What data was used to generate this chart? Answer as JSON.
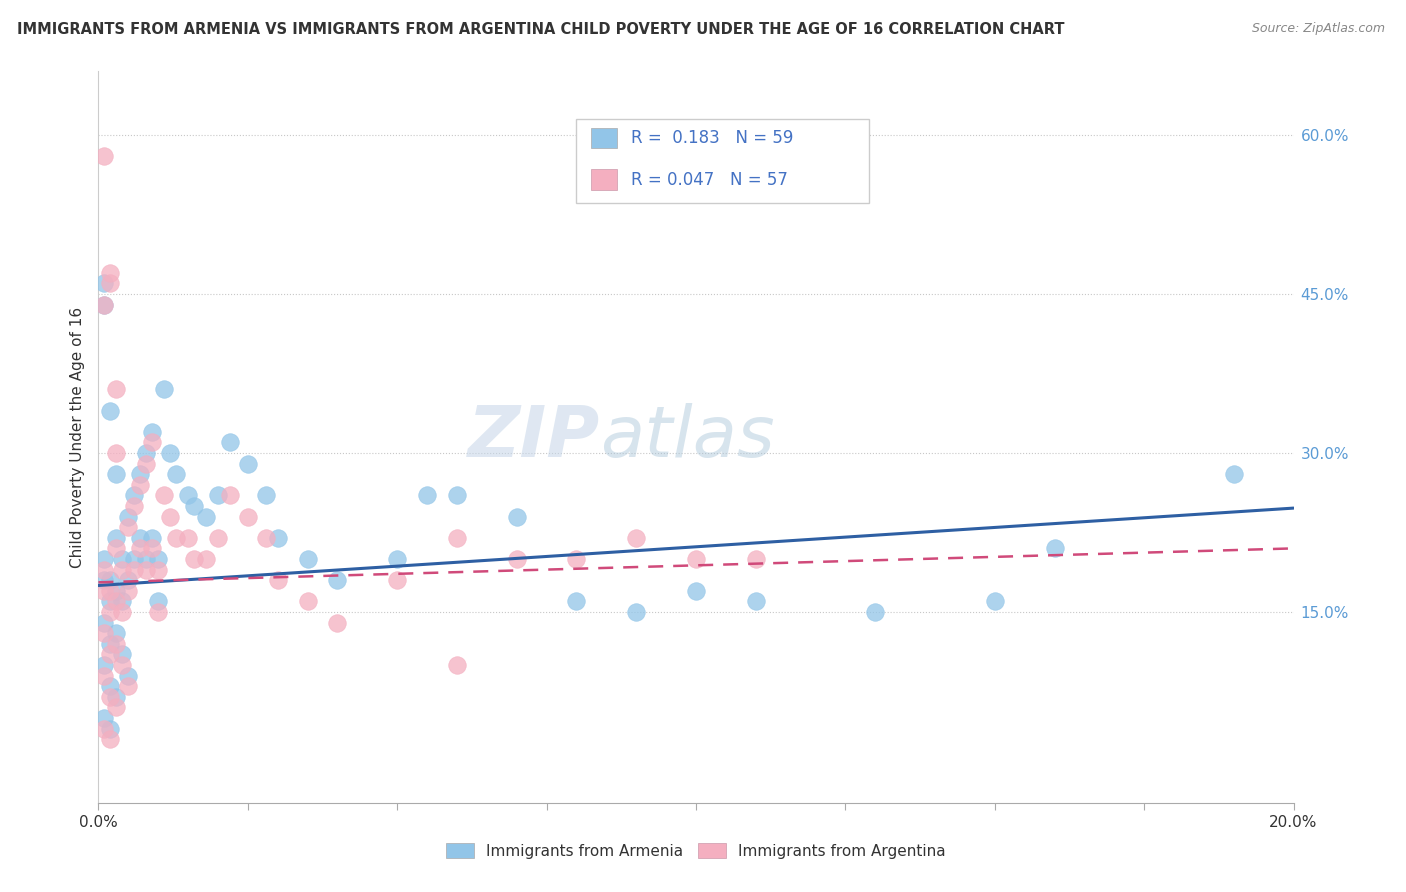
{
  "title": "IMMIGRANTS FROM ARMENIA VS IMMIGRANTS FROM ARGENTINA CHILD POVERTY UNDER THE AGE OF 16 CORRELATION CHART",
  "source": "Source: ZipAtlas.com",
  "ylabel": "Child Poverty Under the Age of 16",
  "y_ticks": [
    0.0,
    0.15,
    0.3,
    0.45,
    0.6
  ],
  "y_tick_labels": [
    "",
    "15.0%",
    "30.0%",
    "45.0%",
    "60.0%"
  ],
  "x_min": 0.0,
  "x_max": 0.2,
  "y_min": -0.03,
  "y_max": 0.66,
  "armenia_color": "#92c5e8",
  "argentina_color": "#f4afc0",
  "armenia_line_color": "#2e5fa3",
  "argentina_line_color": "#d04a7a",
  "armenia_R": 0.183,
  "armenia_N": 59,
  "argentina_R": 0.047,
  "argentina_N": 57,
  "watermark_zip": "ZIP",
  "watermark_atlas": "atlas",
  "legend_label_armenia": "Immigrants from Armenia",
  "legend_label_argentina": "Immigrants from Argentina",
  "armenia_x": [
    0.001,
    0.001,
    0.001,
    0.001,
    0.001,
    0.002,
    0.002,
    0.002,
    0.002,
    0.002,
    0.003,
    0.003,
    0.003,
    0.003,
    0.004,
    0.004,
    0.004,
    0.005,
    0.005,
    0.005,
    0.006,
    0.006,
    0.007,
    0.007,
    0.008,
    0.008,
    0.009,
    0.009,
    0.01,
    0.01,
    0.011,
    0.012,
    0.013,
    0.015,
    0.016,
    0.018,
    0.02,
    0.022,
    0.025,
    0.028,
    0.03,
    0.035,
    0.04,
    0.05,
    0.055,
    0.06,
    0.07,
    0.08,
    0.09,
    0.1,
    0.11,
    0.13,
    0.15,
    0.16,
    0.001,
    0.001,
    0.002,
    0.003,
    0.19
  ],
  "armenia_y": [
    0.18,
    0.2,
    0.14,
    0.1,
    0.05,
    0.18,
    0.16,
    0.12,
    0.08,
    0.04,
    0.22,
    0.17,
    0.13,
    0.07,
    0.2,
    0.16,
    0.11,
    0.24,
    0.18,
    0.09,
    0.26,
    0.2,
    0.28,
    0.22,
    0.3,
    0.2,
    0.32,
    0.22,
    0.2,
    0.16,
    0.36,
    0.3,
    0.28,
    0.26,
    0.25,
    0.24,
    0.26,
    0.31,
    0.29,
    0.26,
    0.22,
    0.2,
    0.18,
    0.2,
    0.26,
    0.26,
    0.24,
    0.16,
    0.15,
    0.17,
    0.16,
    0.15,
    0.16,
    0.21,
    0.44,
    0.46,
    0.34,
    0.28,
    0.28
  ],
  "argentina_x": [
    0.001,
    0.001,
    0.001,
    0.001,
    0.001,
    0.002,
    0.002,
    0.002,
    0.002,
    0.002,
    0.003,
    0.003,
    0.003,
    0.003,
    0.004,
    0.004,
    0.004,
    0.005,
    0.005,
    0.005,
    0.006,
    0.006,
    0.007,
    0.007,
    0.008,
    0.008,
    0.009,
    0.009,
    0.01,
    0.01,
    0.011,
    0.012,
    0.013,
    0.015,
    0.016,
    0.018,
    0.02,
    0.022,
    0.025,
    0.028,
    0.03,
    0.035,
    0.04,
    0.05,
    0.06,
    0.07,
    0.08,
    0.09,
    0.1,
    0.11,
    0.001,
    0.002,
    0.003,
    0.06,
    0.001,
    0.002,
    0.003
  ],
  "argentina_y": [
    0.17,
    0.19,
    0.13,
    0.09,
    0.04,
    0.17,
    0.15,
    0.11,
    0.07,
    0.03,
    0.21,
    0.16,
    0.12,
    0.06,
    0.19,
    0.15,
    0.1,
    0.23,
    0.17,
    0.08,
    0.25,
    0.19,
    0.27,
    0.21,
    0.29,
    0.19,
    0.31,
    0.21,
    0.19,
    0.15,
    0.26,
    0.24,
    0.22,
    0.22,
    0.2,
    0.2,
    0.22,
    0.26,
    0.24,
    0.22,
    0.18,
    0.16,
    0.14,
    0.18,
    0.22,
    0.2,
    0.2,
    0.22,
    0.2,
    0.2,
    0.44,
    0.46,
    0.36,
    0.1,
    0.58,
    0.47,
    0.3
  ]
}
